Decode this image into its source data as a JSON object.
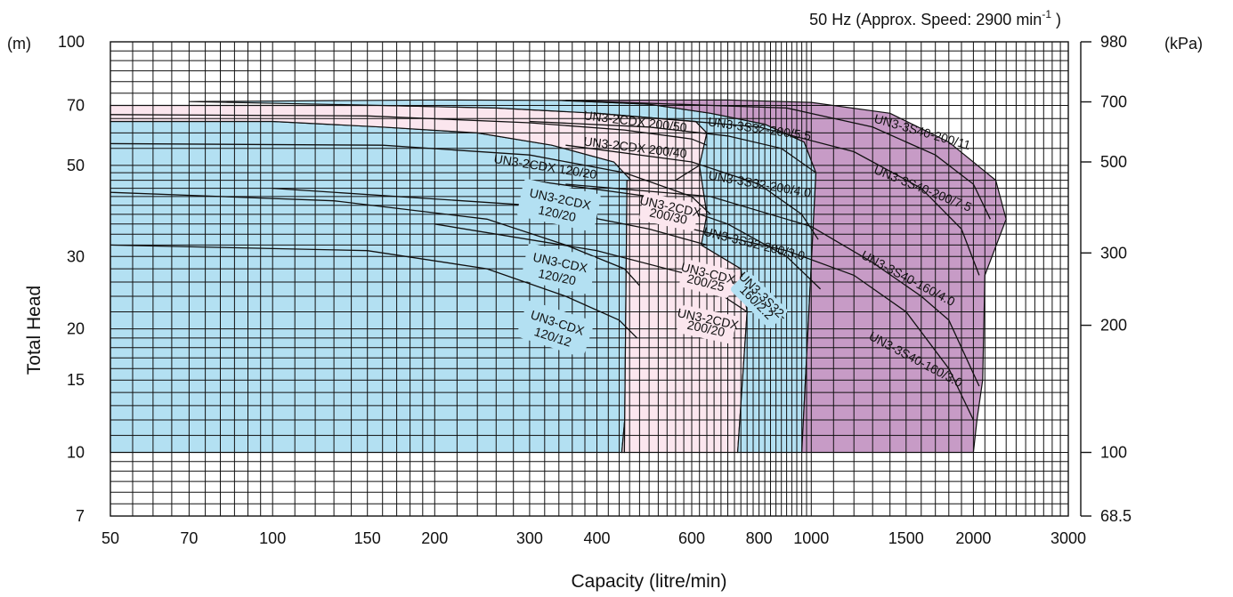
{
  "chart_data": {
    "type": "area",
    "title": "50 Hz (Approx. Speed: 2900 min",
    "title_superscript": "-1",
    "title_suffix": " )",
    "xlabel": "Capacity (litre/min)",
    "ylabel": "Total Head",
    "y_unit_left": "(m)",
    "y_unit_right": "(kPa)",
    "x_scale": "log",
    "y_scale": "log",
    "xlim": [
      50,
      3000
    ],
    "ylim": [
      7,
      100
    ],
    "grid": true,
    "x_ticks": [
      50,
      70,
      100,
      150,
      200,
      300,
      400,
      600,
      800,
      1000,
      1500,
      2000,
      3000
    ],
    "y_ticks": [
      7,
      10,
      15,
      20,
      30,
      50,
      70,
      100
    ],
    "y_ticks_right": [
      {
        "head": 7,
        "label": "68.5"
      },
      {
        "head": 10,
        "label": "100"
      },
      {
        "head": 20.4,
        "label": "200"
      },
      {
        "head": 30.6,
        "label": "300"
      },
      {
        "head": 51,
        "label": "500"
      },
      {
        "head": 71.4,
        "label": "700"
      },
      {
        "head": 100,
        "label": "980"
      }
    ],
    "colors": {
      "blue": "#b3e0f2",
      "pink": "#fbe6ee",
      "purple": "#c79bc6",
      "line": "#111111"
    },
    "regions": [
      {
        "name": "blue-left",
        "color": "blue",
        "outline": [
          [
            50,
            10
          ],
          [
            50,
            64
          ],
          [
            100,
            64
          ],
          [
            160,
            62
          ],
          [
            240,
            60
          ],
          [
            330,
            56
          ],
          [
            430,
            51
          ],
          [
            470,
            45
          ],
          [
            475,
            35
          ],
          [
            480,
            28
          ],
          [
            468,
            21
          ],
          [
            445,
            10
          ]
        ]
      },
      {
        "name": "pink-left",
        "color": "pink",
        "outline": [
          [
            50,
            64
          ],
          [
            50,
            70
          ],
          [
            100,
            70
          ],
          [
            160,
            70
          ],
          [
            260,
            69
          ],
          [
            400,
            67
          ],
          [
            610,
            64
          ],
          [
            640,
            60
          ],
          [
            620,
            50
          ],
          [
            560,
            46
          ],
          [
            455,
            46
          ],
          [
            450,
            10
          ],
          [
            445,
            10
          ],
          [
            468,
            21
          ],
          [
            480,
            28
          ],
          [
            475,
            35
          ],
          [
            470,
            45
          ],
          [
            430,
            51
          ],
          [
            330,
            56
          ],
          [
            240,
            60
          ],
          [
            160,
            62
          ],
          [
            100,
            64
          ]
        ]
      },
      {
        "name": "pink-mid",
        "color": "pink",
        "outline": [
          [
            455,
            46
          ],
          [
            560,
            46
          ],
          [
            620,
            50
          ],
          [
            640,
            38
          ],
          [
            625,
            32
          ],
          [
            740,
            28
          ],
          [
            760,
            22
          ],
          [
            730,
            10
          ],
          [
            450,
            10
          ]
        ]
      },
      {
        "name": "blue-mid",
        "color": "blue",
        "outline": [
          [
            70,
            71.5
          ],
          [
            200,
            72.2
          ],
          [
            340,
            72
          ],
          [
            500,
            70.5
          ],
          [
            650,
            67
          ],
          [
            820,
            63
          ],
          [
            970,
            57
          ],
          [
            1020,
            48
          ],
          [
            990,
            22
          ],
          [
            960,
            10
          ],
          [
            730,
            10
          ],
          [
            760,
            22
          ],
          [
            740,
            28
          ],
          [
            625,
            32
          ],
          [
            640,
            38
          ],
          [
            620,
            50
          ],
          [
            640,
            60
          ],
          [
            610,
            64
          ],
          [
            400,
            67
          ],
          [
            260,
            69
          ],
          [
            160,
            70
          ]
        ]
      },
      {
        "name": "purple",
        "color": "purple",
        "outline": [
          [
            340,
            72
          ],
          [
            700,
            72.2
          ],
          [
            1000,
            71.2
          ],
          [
            1400,
            67
          ],
          [
            1800,
            57
          ],
          [
            2200,
            46
          ],
          [
            2300,
            37
          ],
          [
            2100,
            27
          ],
          [
            2080,
            15
          ],
          [
            2030,
            12
          ],
          [
            2000,
            10
          ],
          [
            960,
            10
          ],
          [
            990,
            22
          ],
          [
            1020,
            48
          ],
          [
            970,
            57
          ],
          [
            820,
            63
          ],
          [
            650,
            67
          ],
          [
            500,
            70.5
          ]
        ]
      }
    ],
    "curves": [
      {
        "name": "UN3-3S40-200/11",
        "points": [
          [
            350,
            72
          ],
          [
            900,
            69
          ],
          [
            1300,
            62
          ],
          [
            1700,
            53
          ],
          [
            2000,
            45
          ],
          [
            2150,
            37
          ]
        ]
      },
      {
        "name": "UN3-3S40-200/7.5",
        "points": [
          [
            400,
            67
          ],
          [
            800,
            62
          ],
          [
            1200,
            54
          ],
          [
            1600,
            44
          ],
          [
            1900,
            35
          ],
          [
            2050,
            27
          ]
        ]
      },
      {
        "name": "UN3-3S40-160/4.0",
        "points": [
          [
            350,
            45
          ],
          [
            650,
            42
          ],
          [
            1000,
            35.5
          ],
          [
            1300,
            29
          ],
          [
            1600,
            24
          ],
          [
            1800,
            21
          ],
          [
            2050,
            14.5
          ]
        ]
      },
      {
        "name": "UN3-3S40-160/3.0",
        "points": [
          [
            600,
            35
          ],
          [
            900,
            31
          ],
          [
            1200,
            27
          ],
          [
            1500,
            22
          ],
          [
            1800,
            16
          ],
          [
            2000,
            12
          ]
        ]
      },
      {
        "name": "UN3-3S32-200/5.5",
        "points": [
          [
            300,
            64
          ],
          [
            500,
            62
          ],
          [
            700,
            59
          ],
          [
            880,
            55
          ],
          [
            1020,
            48
          ]
        ]
      },
      {
        "name": "UN3-3S32-200/4.0",
        "points": [
          [
            350,
            56
          ],
          [
            600,
            51
          ],
          [
            800,
            45
          ],
          [
            960,
            38
          ],
          [
            1030,
            33
          ]
        ]
      },
      {
        "name": "UN3-3S32-200/3.0",
        "points": [
          [
            300,
            46
          ],
          [
            500,
            42
          ],
          [
            700,
            36
          ],
          [
            900,
            30
          ],
          [
            1040,
            25
          ]
        ]
      },
      {
        "name": "UN3-2CDX 200/50",
        "points": [
          [
            50,
            66.5
          ],
          [
            150,
            66
          ],
          [
            300,
            63.5
          ],
          [
            450,
            61
          ],
          [
            600,
            58
          ],
          [
            640,
            56
          ]
        ]
      },
      {
        "name": "UN3-2CDX 200/40",
        "points": [
          [
            50,
            56.5
          ],
          [
            160,
            56
          ],
          [
            300,
            53
          ],
          [
            450,
            48
          ],
          [
            600,
            42
          ],
          [
            650,
            38
          ]
        ]
      },
      {
        "name": "UN3-2CDX 200/30",
        "points": [
          [
            100,
            44
          ],
          [
            300,
            40
          ],
          [
            500,
            35
          ],
          [
            640,
            32
          ]
        ]
      },
      {
        "name": "UN3-2CDX 200/25",
        "points": [
          [
            200,
            36
          ],
          [
            400,
            31
          ],
          [
            600,
            27
          ],
          [
            760,
            22
          ]
        ]
      },
      {
        "name": "UN3-2CDX 120/20",
        "points": [
          [
            50,
            43
          ],
          [
            130,
            41
          ],
          [
            250,
            37
          ],
          [
            350,
            32
          ],
          [
            450,
            28
          ],
          [
            480,
            25.5
          ]
        ]
      },
      {
        "name": "UN3-CDX 120/20",
        "points": [
          [
            50,
            32
          ],
          [
            150,
            31
          ],
          [
            250,
            28
          ],
          [
            350,
            24
          ],
          [
            440,
            21
          ],
          [
            475,
            19
          ]
        ]
      }
    ],
    "labels": [
      {
        "text": "UN3-2CDX 200/50",
        "at": [
          470,
          62.5
        ],
        "rotate": 7,
        "size": 13
      },
      {
        "text": "UN3-2CDX 200/40",
        "at": [
          470,
          54
        ],
        "rotate": 7,
        "size": 13
      },
      {
        "text": "UN3-2CDX 120/20",
        "at": [
          320,
          48.5
        ],
        "rotate": 9,
        "size": 13
      },
      {
        "text": "UN3-3S32-200/5.5",
        "at": [
          800,
          60
        ],
        "rotate": 8,
        "size": 13
      },
      {
        "text": "UN3-3S32-200/4.0",
        "at": [
          800,
          44
        ],
        "rotate": 10,
        "size": 13
      },
      {
        "text": "UN3-3S32-200/3.0",
        "at": [
          780,
          31.5
        ],
        "rotate": 14,
        "size": 11
      },
      {
        "text": "UN3-3S40-200/11",
        "at": [
          1600,
          59
        ],
        "rotate": 16,
        "size": 14
      },
      {
        "text": "UN3-3S40-200/7.5",
        "at": [
          1600,
          43
        ],
        "rotate": 22,
        "size": 14
      },
      {
        "text": "UN3-3S40-160/4.0",
        "at": [
          1500,
          26
        ],
        "rotate": 28,
        "size": 14
      },
      {
        "text": "UN3-3S40-160/3.0",
        "at": [
          1550,
          16.5
        ],
        "rotate": 28,
        "size": 14
      }
    ],
    "badges": [
      {
        "lines": [
          "UN3-2CDX",
          "120/20"
        ],
        "at": [
          340,
          40
        ],
        "size": 15,
        "rotate": 12
      },
      {
        "lines": [
          "UN3-CDX",
          "120/20"
        ],
        "at": [
          340,
          28
        ],
        "size": 15,
        "rotate": 12
      },
      {
        "lines": [
          "UN3-CDX",
          "120/12"
        ],
        "at": [
          335,
          20
        ],
        "size": 15,
        "rotate": 18
      },
      {
        "lines": [
          "UN3-2CDX",
          "200/30"
        ],
        "at": [
          545,
          38.5
        ],
        "size": 10,
        "rotate": 12
      },
      {
        "lines": [
          "UN3-CDX",
          "200/25"
        ],
        "at": [
          640,
          26.5
        ],
        "size": 10,
        "rotate": 14
      },
      {
        "lines": [
          "UN3-2CDX",
          "200/20"
        ],
        "at": [
          640,
          20.5
        ],
        "size": 10,
        "rotate": 12
      },
      {
        "lines": [
          "UN3-3S32-",
          "160/2.2"
        ],
        "at": [
          800,
          23.5
        ],
        "size": 9,
        "rotate": 45
      }
    ]
  }
}
